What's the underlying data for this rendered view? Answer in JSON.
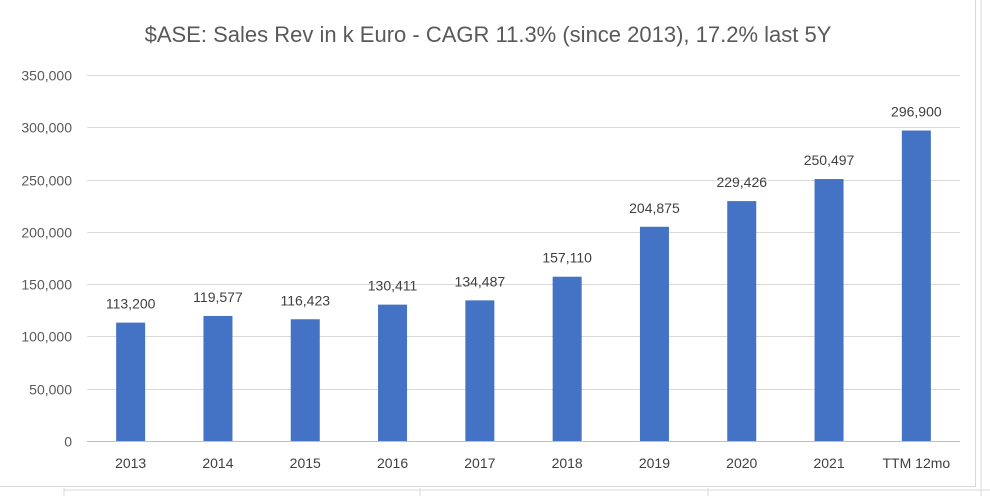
{
  "chart_data": {
    "type": "bar",
    "title": "$ASE: Sales Rev in k Euro - CAGR 11.3% (since 2013), 17.2% last 5Y",
    "xlabel": "",
    "ylabel": "",
    "categories": [
      "2013",
      "2014",
      "2015",
      "2016",
      "2017",
      "2018",
      "2019",
      "2020",
      "2021",
      "TTM 12mo"
    ],
    "values": [
      113200,
      119577,
      116423,
      130411,
      134487,
      157110,
      204875,
      229426,
      250497,
      296900
    ],
    "data_labels": [
      "113,200",
      "119,577",
      "116,423",
      "130,411",
      "134,487",
      "157,110",
      "204,875",
      "229,426",
      "250,497",
      "296,900"
    ],
    "ylim": [
      0,
      350000
    ],
    "y_ticks": [
      0,
      50000,
      100000,
      150000,
      200000,
      250000,
      300000,
      350000
    ],
    "y_tick_labels": [
      "0",
      "50,000",
      "100,000",
      "150,000",
      "200,000",
      "250,000",
      "300,000",
      "350,000"
    ],
    "grid": true,
    "legend": "none",
    "bar_color": "#4472c4"
  }
}
